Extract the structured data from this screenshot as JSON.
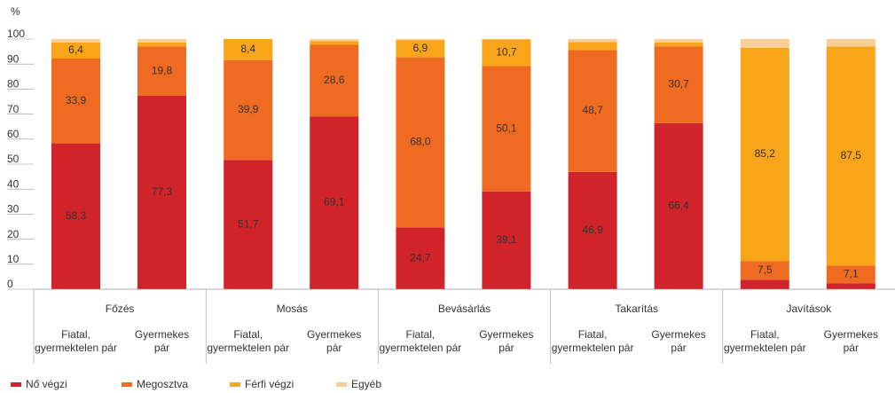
{
  "chart_data": {
    "type": "bar",
    "stacked": true,
    "y_axis_label": "%",
    "groups": [
      "Főzés",
      "Mosás",
      "Bevásárlás",
      "Takarítás",
      "Javítások"
    ],
    "categories": [
      "Fiatal, gyermektelen pár",
      "Gyermekes pár",
      "Fiatal, gyermektelen pár",
      "Gyermekes pár",
      "Fiatal, gyermektelen pár",
      "Gyermekes pár",
      "Fiatal, gyermektelen pár",
      "Gyermekes pár",
      "Fiatal, gyermektelen pár",
      "Gyermekes pár"
    ],
    "series": [
      {
        "name": "Nő végzi",
        "color": "#d1232a",
        "values": [
          58.3,
          77.3,
          51.7,
          69.1,
          24.7,
          39.1,
          46.9,
          66.4,
          3.8,
          2.4
        ],
        "value_labels": [
          "58,3",
          "77,3",
          "51,7",
          "69,1",
          "24,7",
          "39,1",
          "46,9",
          "66,4",
          null,
          null
        ]
      },
      {
        "name": "Megosztva",
        "color": "#ef6b22",
        "values": [
          33.9,
          19.8,
          39.9,
          28.6,
          68.0,
          50.1,
          48.7,
          30.7,
          7.5,
          7.1
        ],
        "value_labels": [
          "33,9",
          "19,8",
          "39,9",
          "28,6",
          "68,0",
          "50,1",
          "48,7",
          "30,7",
          "7,5",
          "7,1"
        ]
      },
      {
        "name": "Férfi végzi",
        "color": "#f9a51a",
        "values": [
          6.4,
          1.5,
          8.4,
          1.5,
          6.9,
          10.7,
          3.2,
          1.5,
          85.2,
          87.5
        ],
        "value_labels": [
          "6,4",
          null,
          "8,4",
          null,
          "6,9",
          "10,7",
          null,
          null,
          "85,2",
          "87,5"
        ]
      },
      {
        "name": "Egyéb",
        "color": "#f9cf98",
        "values": [
          1.4,
          1.4,
          0,
          0.8,
          0.4,
          0.1,
          1.2,
          1.4,
          3.5,
          3.0
        ]
      }
    ],
    "ylim": [
      0,
      100
    ],
    "yticks": [
      0,
      10,
      20,
      30,
      40,
      50,
      60,
      70,
      80,
      90,
      100
    ],
    "grid": false,
    "legend": "bottom-left"
  }
}
